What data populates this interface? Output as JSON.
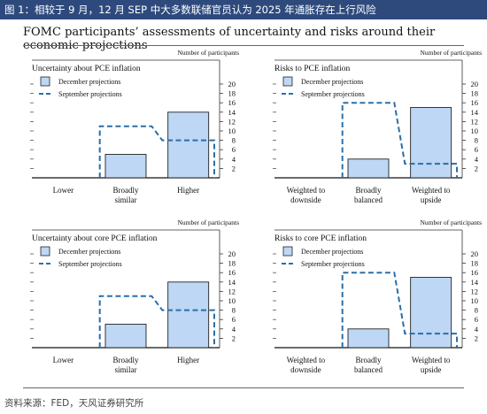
{
  "header": {
    "title": "图 1：相较于 9 月，12 月 SEP 中大多数联储官员认为 2025 年通胀存在上行风险"
  },
  "figure_title": "FOMC participants’ assessments of uncertainty and risks around their economic projections",
  "source": "资料来源：FED，天风证券研究所",
  "colors": {
    "header_bg": "#2e4a7d",
    "december_fill": "#bdd7f5",
    "september_line": "#2b6ea8"
  },
  "chart_data": [
    {
      "type": "bar",
      "title": "Uncertainty about PCE inflation",
      "ylabel": "Number of participants",
      "categories": [
        "Lower",
        "Broadly similar",
        "Higher"
      ],
      "series": [
        {
          "name": "December projections",
          "values": [
            0,
            5,
            14
          ]
        },
        {
          "name": "September projections",
          "values": [
            0,
            11,
            8
          ]
        }
      ],
      "yticks": [
        2,
        4,
        6,
        8,
        10,
        12,
        14,
        16,
        18,
        20
      ],
      "ylim": [
        0,
        20
      ],
      "legend": "top-left"
    },
    {
      "type": "bar",
      "title": "Risks to PCE inflation",
      "ylabel": "Number of participants",
      "categories": [
        "Weighted to downside",
        "Broadly balanced",
        "Weighted to upside"
      ],
      "series": [
        {
          "name": "December projections",
          "values": [
            0,
            4,
            15
          ]
        },
        {
          "name": "September projections",
          "values": [
            0,
            16,
            3
          ]
        }
      ],
      "yticks": [
        2,
        4,
        6,
        8,
        10,
        12,
        14,
        16,
        18,
        20
      ],
      "ylim": [
        0,
        20
      ],
      "legend": "top-left"
    },
    {
      "type": "bar",
      "title": "Uncertainty about core PCE inflation",
      "ylabel": "Number of participants",
      "categories": [
        "Lower",
        "Broadly similar",
        "Higher"
      ],
      "series": [
        {
          "name": "December projections",
          "values": [
            0,
            5,
            14
          ]
        },
        {
          "name": "September projections",
          "values": [
            0,
            11,
            8
          ]
        }
      ],
      "yticks": [
        2,
        4,
        6,
        8,
        10,
        12,
        14,
        16,
        18,
        20
      ],
      "ylim": [
        0,
        20
      ],
      "legend": "top-left"
    },
    {
      "type": "bar",
      "title": "Risks to core PCE inflation",
      "ylabel": "Number of participants",
      "categories": [
        "Weighted to downside",
        "Broadly balanced",
        "Weighted to upside"
      ],
      "series": [
        {
          "name": "December projections",
          "values": [
            0,
            4,
            15
          ]
        },
        {
          "name": "September projections",
          "values": [
            0,
            16,
            3
          ]
        }
      ],
      "yticks": [
        2,
        4,
        6,
        8,
        10,
        12,
        14,
        16,
        18,
        20
      ],
      "ylim": [
        0,
        20
      ],
      "legend": "top-left"
    }
  ]
}
